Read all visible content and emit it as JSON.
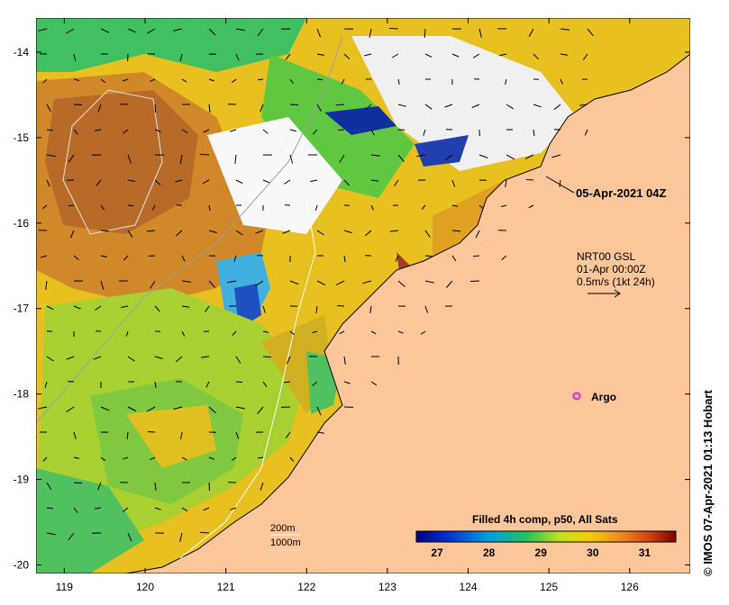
{
  "map": {
    "lon_ticks": [
      "119",
      "120",
      "121",
      "122",
      "123",
      "124",
      "125",
      "126"
    ],
    "lat_ticks": [
      "-14",
      "-15",
      "-16",
      "-17",
      "-18",
      "-19",
      "-20"
    ],
    "lon_range": [
      118.65,
      126.75
    ],
    "lat_range": [
      -20.1,
      -13.6
    ]
  },
  "annotations": {
    "time_label": "05-Apr-2021 04Z",
    "current_model": "NRT00 GSL",
    "current_time": "01-Apr 00:00Z",
    "current_scale": "0.5m/s (1kt 24h)",
    "argo_label": "Argo",
    "contour_200": "200m",
    "contour_1000": "1000m",
    "credit": "© IMOS 07-Apr-2021 01:13 Hobart"
  },
  "colorbar": {
    "title": "Filled 4h comp, p50, All Sats",
    "ticks": [
      "27",
      "28",
      "29",
      "30",
      "31"
    ],
    "min": 26.6,
    "max": 31.6
  },
  "colors": {
    "land": "#fbc79a",
    "cold": "#1030a0",
    "warm": "#b04010",
    "argo": "#e020e0"
  }
}
